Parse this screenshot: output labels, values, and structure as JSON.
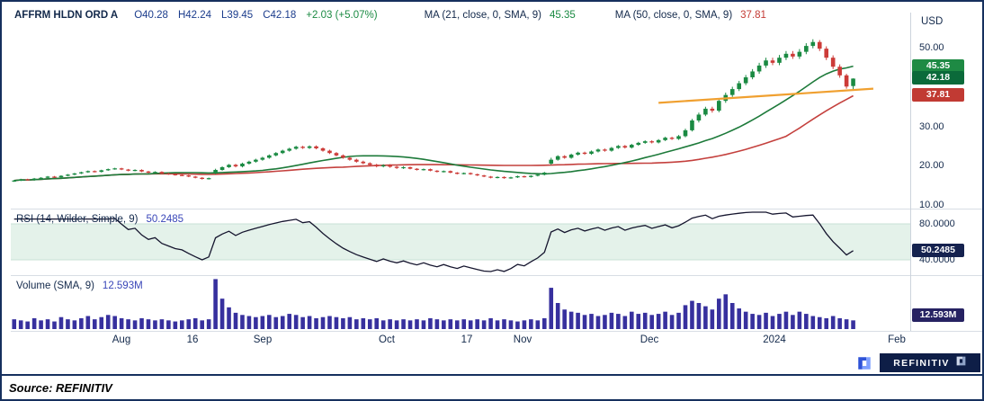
{
  "header": {
    "symbol": "AFFRM HLDN ORD A",
    "open": "O40.28",
    "high": "H42.24",
    "low": "L39.45",
    "close": "C42.18",
    "change": "+2.03 (+5.07%)",
    "ma21_label": "MA (21, close, 0, SMA, 9)",
    "ma21_value": "45.35",
    "ma50_label": "MA (50, close, 0, SMA, 9)",
    "ma50_value": "37.81"
  },
  "rsi_panel": {
    "label": "RSI (14, Wilder, Simple, 9)",
    "value": "50.2485"
  },
  "volume_panel": {
    "label": "Volume (SMA, 9)",
    "value": "12.593M"
  },
  "axis": {
    "currency": "USD",
    "price_ticks": [
      {
        "label": "50.00",
        "value": 50
      },
      {
        "label": "30.00",
        "value": 30
      },
      {
        "label": "20.00",
        "value": 20
      },
      {
        "label": "10.00",
        "value": 10
      }
    ],
    "price_badges": [
      {
        "label": "45.35",
        "value": 45.35,
        "bg": "#1e8a44"
      },
      {
        "label": "42.18",
        "value": 42.18,
        "bg": "#0b6a3a"
      },
      {
        "label": "37.81",
        "value": 37.81,
        "bg": "#c13a33"
      }
    ],
    "rsi_ticks": [
      {
        "label": "80.0000",
        "value": 80
      },
      {
        "label": "40.0000",
        "value": 40
      }
    ],
    "rsi_badge": {
      "label": "50.2485",
      "value": 50.2485,
      "bg": "#15224f"
    },
    "volume_badge": {
      "label": "12.593M",
      "value": 12.593,
      "bg": "#262262"
    }
  },
  "x_ticks": [
    {
      "label": "Aug",
      "pct": 12.3
    },
    {
      "label": "16",
      "pct": 20.2
    },
    {
      "label": "Sep",
      "pct": 28.0
    },
    {
      "label": "Oct",
      "pct": 41.8
    },
    {
      "label": "17",
      "pct": 50.7
    },
    {
      "label": "Nov",
      "pct": 56.9
    },
    {
      "label": "Dec",
      "pct": 71.0
    },
    {
      "label": "2024",
      "pct": 84.9
    },
    {
      "label": "Feb",
      "pct": 98.5
    }
  ],
  "branding": {
    "wordmark": "REFINITIV"
  },
  "source": {
    "text": "Source: REFINITIV"
  },
  "colors": {
    "up": "#1a8a42",
    "down": "#cc3b38",
    "ma21": "#1d7a3a",
    "ma50": "#c4403d",
    "trendline": "#f0a030",
    "rsi_line": "#15152e",
    "rsi_band": "#e4f2ea",
    "rsi_band_edge": "#c9e2d6",
    "volume": "#37309e",
    "axis_text": "#13294b"
  },
  "chart_data": [
    {
      "panel": "price",
      "type": "candlestick",
      "title": "AFFRM HLDN ORD A",
      "ylabel": "USD",
      "ylim": [
        9.5,
        53.5
      ],
      "yticks": [
        50,
        30,
        20,
        10
      ],
      "last": {
        "open": 40.28,
        "high": 42.24,
        "low": 39.45,
        "close": 42.18,
        "change": 2.03,
        "change_pct": 5.07
      },
      "overlays": [
        {
          "name": "MA (21, close, 0, SMA, 9)",
          "derived": "sma(close,21)",
          "last_value": 45.35
        },
        {
          "name": "MA (50, close, 0, SMA, 9)",
          "derived": "sma(close,50)",
          "last_value": 37.81
        }
      ],
      "trendline": {
        "from_index": 96,
        "from_value": 36.0,
        "to_index": 128,
        "to_value": 39.6
      },
      "candles": [
        [
          16.0,
          16.35,
          15.85,
          16.2
        ],
        [
          16.2,
          16.65,
          16.05,
          16.5
        ],
        [
          16.5,
          16.65,
          16.15,
          16.3
        ],
        [
          16.3,
          16.85,
          16.15,
          16.7
        ],
        [
          16.7,
          17.05,
          16.55,
          16.9
        ],
        [
          16.9,
          17.35,
          16.75,
          17.2
        ],
        [
          17.2,
          17.35,
          16.85,
          17.0
        ],
        [
          17.0,
          17.55,
          16.85,
          17.4
        ],
        [
          17.4,
          17.85,
          17.25,
          17.7
        ],
        [
          17.7,
          18.15,
          17.55,
          18.0
        ],
        [
          18.0,
          18.45,
          17.85,
          18.3
        ],
        [
          18.3,
          18.75,
          18.15,
          18.6
        ],
        [
          18.6,
          18.75,
          18.25,
          18.4
        ],
        [
          18.4,
          18.95,
          18.25,
          18.8
        ],
        [
          18.8,
          19.25,
          18.65,
          19.1
        ],
        [
          19.1,
          19.45,
          18.95,
          19.3
        ],
        [
          19.3,
          19.45,
          18.85,
          19.0
        ],
        [
          19.0,
          19.15,
          18.55,
          18.7
        ],
        [
          18.7,
          19.05,
          18.55,
          18.9
        ],
        [
          18.9,
          19.05,
          18.35,
          18.5
        ],
        [
          18.5,
          18.65,
          18.05,
          18.2
        ],
        [
          18.2,
          18.55,
          18.05,
          18.4
        ],
        [
          18.4,
          18.55,
          17.85,
          18.0
        ],
        [
          18.0,
          18.15,
          17.65,
          17.8
        ],
        [
          17.8,
          17.95,
          17.45,
          17.6
        ],
        [
          17.6,
          17.75,
          17.35,
          17.5
        ],
        [
          17.5,
          17.65,
          17.05,
          17.2
        ],
        [
          17.2,
          17.35,
          16.75,
          16.9
        ],
        [
          16.9,
          17.05,
          16.45,
          16.6
        ],
        [
          16.6,
          16.95,
          16.45,
          16.8
        ],
        [
          18.0,
          19.2,
          17.8,
          18.9
        ],
        [
          18.9,
          19.8,
          18.7,
          19.6
        ],
        [
          19.6,
          20.4,
          19.4,
          20.2
        ],
        [
          20.2,
          20.45,
          19.55,
          19.8
        ],
        [
          19.8,
          20.75,
          19.55,
          20.5
        ],
        [
          20.5,
          21.25,
          20.25,
          21.0
        ],
        [
          21.0,
          21.75,
          20.75,
          21.5
        ],
        [
          21.5,
          22.25,
          21.25,
          22.0
        ],
        [
          22.0,
          22.85,
          21.75,
          22.6
        ],
        [
          22.6,
          23.45,
          22.35,
          23.2
        ],
        [
          23.2,
          24.05,
          22.95,
          23.8
        ],
        [
          23.8,
          24.55,
          23.55,
          24.3
        ],
        [
          24.3,
          25.05,
          24.05,
          24.8
        ],
        [
          24.8,
          25.05,
          24.25,
          24.5
        ],
        [
          24.5,
          25.15,
          24.25,
          24.9
        ],
        [
          24.9,
          25.15,
          24.15,
          24.4
        ],
        [
          24.4,
          24.65,
          23.55,
          23.8
        ],
        [
          23.8,
          24.05,
          22.95,
          23.2
        ],
        [
          23.2,
          23.45,
          22.35,
          22.6
        ],
        [
          22.6,
          22.85,
          21.75,
          22.0
        ],
        [
          22.0,
          22.25,
          21.25,
          21.5
        ],
        [
          21.5,
          21.75,
          20.75,
          21.0
        ],
        [
          21.0,
          21.25,
          20.35,
          20.6
        ],
        [
          20.6,
          20.85,
          19.95,
          20.2
        ],
        [
          20.2,
          20.45,
          19.55,
          19.8
        ],
        [
          19.8,
          20.35,
          19.55,
          20.1
        ],
        [
          20.1,
          20.35,
          19.45,
          19.7
        ],
        [
          19.7,
          19.95,
          19.15,
          19.4
        ],
        [
          19.4,
          19.85,
          19.15,
          19.6
        ],
        [
          19.6,
          19.75,
          19.05,
          19.2
        ],
        [
          19.2,
          19.35,
          18.75,
          18.9
        ],
        [
          18.9,
          19.25,
          18.75,
          19.1
        ],
        [
          19.1,
          19.25,
          18.55,
          18.7
        ],
        [
          18.7,
          18.85,
          18.25,
          18.4
        ],
        [
          18.4,
          18.75,
          18.25,
          18.6
        ],
        [
          18.6,
          18.75,
          18.05,
          18.2
        ],
        [
          18.2,
          18.35,
          17.75,
          17.9
        ],
        [
          17.9,
          18.25,
          17.75,
          18.1
        ],
        [
          18.1,
          18.25,
          17.65,
          17.8
        ],
        [
          17.8,
          17.95,
          17.35,
          17.5
        ],
        [
          17.5,
          17.65,
          17.05,
          17.2
        ],
        [
          17.2,
          17.35,
          16.75,
          16.9
        ],
        [
          16.9,
          17.25,
          16.75,
          17.1
        ],
        [
          17.1,
          17.25,
          16.65,
          16.8
        ],
        [
          16.8,
          17.15,
          16.65,
          17.0
        ],
        [
          17.0,
          17.45,
          16.85,
          17.3
        ],
        [
          17.3,
          17.45,
          16.95,
          17.1
        ],
        [
          17.1,
          17.55,
          16.95,
          17.4
        ],
        [
          17.4,
          17.85,
          17.25,
          17.7
        ],
        [
          17.7,
          18.4,
          17.5,
          18.2
        ],
        [
          20.5,
          22.0,
          20.2,
          21.5
        ],
        [
          21.5,
          22.65,
          21.25,
          22.4
        ],
        [
          22.4,
          22.65,
          21.75,
          22.0
        ],
        [
          22.0,
          23.05,
          21.75,
          22.8
        ],
        [
          22.8,
          23.55,
          22.55,
          23.3
        ],
        [
          23.3,
          23.55,
          22.75,
          23.0
        ],
        [
          23.0,
          23.85,
          22.75,
          23.6
        ],
        [
          23.6,
          24.35,
          23.35,
          24.1
        ],
        [
          24.1,
          24.35,
          23.55,
          23.8
        ],
        [
          23.8,
          24.75,
          23.55,
          24.5
        ],
        [
          24.5,
          25.25,
          24.25,
          25.0
        ],
        [
          25.0,
          25.25,
          24.35,
          24.6
        ],
        [
          24.6,
          25.55,
          24.35,
          25.3
        ],
        [
          25.3,
          26.05,
          25.05,
          25.8
        ],
        [
          25.8,
          26.45,
          25.55,
          26.2
        ],
        [
          26.2,
          26.45,
          25.65,
          25.9
        ],
        [
          25.9,
          26.75,
          25.65,
          26.5
        ],
        [
          26.5,
          27.35,
          26.25,
          27.1
        ],
        [
          27.1,
          27.35,
          26.55,
          26.8
        ],
        [
          26.8,
          27.8,
          26.55,
          27.5
        ],
        [
          27.5,
          29.4,
          27.2,
          29.0
        ],
        [
          29.0,
          31.9,
          28.7,
          31.5
        ],
        [
          31.5,
          33.5,
          31.0,
          33.0
        ],
        [
          33.0,
          35.0,
          32.6,
          34.5
        ],
        [
          34.5,
          35.0,
          33.5,
          34.0
        ],
        [
          34.0,
          37.0,
          33.6,
          36.5
        ],
        [
          36.5,
          38.6,
          36.0,
          38.0
        ],
        [
          38.0,
          40.1,
          37.5,
          39.5
        ],
        [
          39.5,
          41.6,
          39.0,
          41.0
        ],
        [
          41.0,
          43.1,
          40.5,
          42.5
        ],
        [
          42.5,
          44.6,
          42.0,
          44.0
        ],
        [
          44.0,
          46.2,
          43.4,
          45.5
        ],
        [
          45.5,
          47.5,
          44.9,
          46.8
        ],
        [
          46.8,
          47.5,
          45.6,
          46.2
        ],
        [
          46.2,
          48.2,
          45.6,
          47.5
        ],
        [
          47.5,
          49.2,
          46.9,
          48.5
        ],
        [
          48.5,
          49.2,
          47.2,
          47.8
        ],
        [
          47.8,
          49.7,
          47.2,
          49.0
        ],
        [
          49.0,
          51.2,
          48.4,
          50.5
        ],
        [
          50.5,
          52.2,
          49.9,
          51.5
        ],
        [
          51.5,
          52.0,
          49.2,
          49.8
        ],
        [
          49.8,
          50.4,
          46.9,
          47.5
        ],
        [
          47.5,
          48.1,
          44.6,
          45.2
        ],
        [
          45.2,
          45.8,
          42.4,
          43.0
        ],
        [
          43.0,
          43.4,
          39.6,
          40.15
        ],
        [
          40.28,
          42.24,
          39.45,
          42.18
        ]
      ]
    },
    {
      "panel": "rsi",
      "type": "line",
      "name": "RSI (14, Wilder, Simple, 9)",
      "derived_from": "wilder_rsi(close,14)",
      "last_value": 50.2485,
      "ylim": [
        25,
        95
      ],
      "yticks": [
        80,
        40
      ],
      "band": [
        40,
        80
      ]
    },
    {
      "panel": "volume",
      "type": "bar",
      "name": "Volume (SMA, 9)",
      "unit": "millions",
      "sma_last_label": "12.593M",
      "sma_last_value": 12.593,
      "ylim": [
        0,
        48
      ],
      "values": [
        9,
        8,
        7,
        10,
        8,
        9,
        7,
        11,
        9,
        8,
        10,
        12,
        9,
        11,
        13,
        12,
        10,
        9,
        8,
        10,
        9,
        8,
        9,
        8,
        7,
        8,
        9,
        10,
        8,
        9,
        46,
        28,
        20,
        15,
        13,
        12,
        11,
        12,
        13,
        11,
        12,
        14,
        13,
        11,
        12,
        10,
        11,
        12,
        11,
        10,
        11,
        9,
        10,
        9,
        10,
        8,
        9,
        8,
        9,
        8,
        9,
        8,
        10,
        9,
        8,
        9,
        8,
        9,
        8,
        9,
        8,
        10,
        8,
        9,
        8,
        7,
        8,
        9,
        8,
        10,
        38,
        24,
        18,
        16,
        15,
        13,
        14,
        12,
        13,
        15,
        14,
        12,
        16,
        14,
        15,
        13,
        14,
        16,
        13,
        15,
        22,
        26,
        24,
        21,
        18,
        28,
        32,
        24,
        19,
        16,
        14,
        13,
        15,
        12,
        14,
        16,
        13,
        16,
        14,
        12,
        11,
        10,
        12,
        10,
        9,
        8
      ]
    }
  ]
}
